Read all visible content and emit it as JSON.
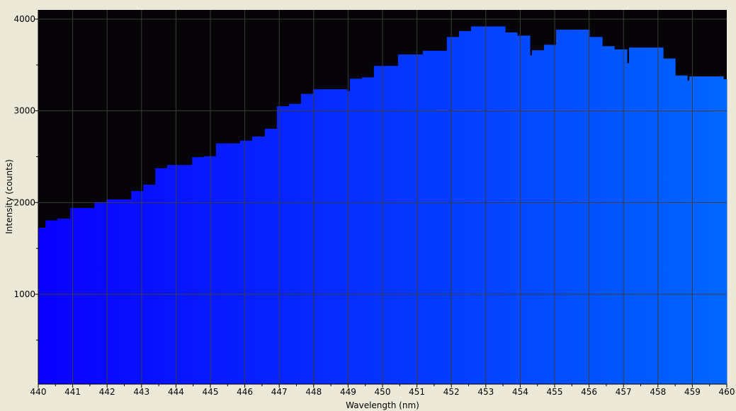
{
  "chart_data": {
    "type": "area",
    "style": "step",
    "title": "",
    "xlabel": "Wavelength (nm)",
    "ylabel": "Intensity (counts)",
    "xlim": [
      440,
      460
    ],
    "ylim": [
      30,
      4100
    ],
    "xticks": [
      440,
      441,
      442,
      443,
      444,
      445,
      446,
      447,
      448,
      449,
      450,
      451,
      452,
      453,
      454,
      455,
      456,
      457,
      458,
      459,
      460
    ],
    "yticks": [
      1000,
      2000,
      3000,
      4000
    ],
    "grid": true,
    "legend": "none",
    "colors": {
      "background": "#ece9d8",
      "plot_background": "#060406",
      "grid": "#3c3c3c",
      "fill_start": "#0a00ff",
      "fill_end": "#0066ff"
    },
    "series": [
      {
        "x": [
          440.0,
          440.21,
          440.56,
          440.93,
          441.63,
          441.98,
          442.7,
          443.05,
          443.4,
          443.74,
          444.47,
          444.81,
          445.16,
          445.86,
          446.21,
          446.58,
          446.93,
          447.28,
          447.63,
          447.98,
          448.97,
          449.05,
          449.4,
          449.75,
          450.45,
          451.17,
          451.87,
          452.22,
          452.57,
          453.56,
          453.91,
          454.28,
          454.34,
          454.69,
          455.04,
          456.01,
          456.38,
          456.73,
          457.1,
          457.16,
          458.15,
          458.5,
          458.85,
          458.91,
          459.9
        ],
        "y": [
          1725,
          1805,
          1825,
          1940,
          2005,
          2035,
          2125,
          2195,
          2375,
          2410,
          2495,
          2505,
          2645,
          2675,
          2720,
          2805,
          3050,
          3075,
          3185,
          3235,
          3215,
          3350,
          3365,
          3490,
          3615,
          3655,
          3805,
          3870,
          3920,
          3855,
          3820,
          3605,
          3660,
          3720,
          3885,
          3805,
          3705,
          3670,
          3520,
          3690,
          3570,
          3385,
          3330,
          3375,
          3345
        ]
      }
    ]
  }
}
